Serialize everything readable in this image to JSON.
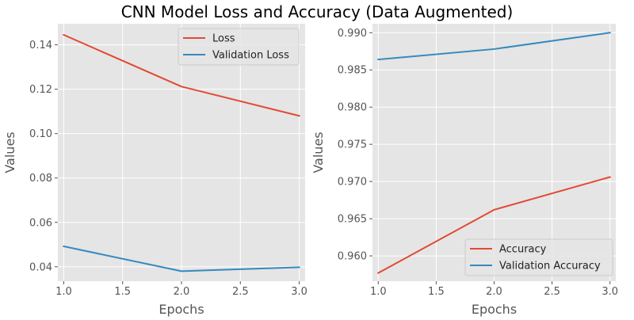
{
  "figure": {
    "title": "CNN Model Loss and Accuracy (Data Augmented)"
  },
  "chart_data": [
    {
      "type": "line",
      "title": "",
      "xlabel": "Epochs",
      "ylabel": "Values",
      "x": [
        1.0,
        2.0,
        3.0
      ],
      "xlim": [
        0.95,
        3.05
      ],
      "ylim": [
        0.0335,
        0.1495
      ],
      "xticks": [
        "1.0",
        "1.5",
        "2.0",
        "2.5",
        "3.0"
      ],
      "yticks": [
        "0.04",
        "0.06",
        "0.08",
        "0.10",
        "0.12",
        "0.14"
      ],
      "grid": true,
      "legend_position": "upper right",
      "series": [
        {
          "name": "Loss",
          "values": [
            0.1445,
            0.1212,
            0.108
          ],
          "color": "#e24a33"
        },
        {
          "name": "Validation Loss",
          "values": [
            0.0492,
            0.038,
            0.0398
          ],
          "color": "#348abd"
        }
      ]
    },
    {
      "type": "line",
      "title": "",
      "xlabel": "Epochs",
      "ylabel": "Values",
      "x": [
        1.0,
        2.0,
        3.0
      ],
      "xlim": [
        0.95,
        3.05
      ],
      "ylim": [
        0.9566,
        0.9912
      ],
      "xticks": [
        "1.0",
        "1.5",
        "2.0",
        "2.5",
        "3.0"
      ],
      "yticks": [
        "0.960",
        "0.965",
        "0.970",
        "0.975",
        "0.980",
        "0.985",
        "0.990"
      ],
      "grid": true,
      "legend_position": "lower right",
      "series": [
        {
          "name": "Accuracy",
          "values": [
            0.9577,
            0.9662,
            0.9706
          ],
          "color": "#e24a33"
        },
        {
          "name": "Validation Accuracy",
          "values": [
            0.9864,
            0.9878,
            0.99
          ],
          "color": "#348abd"
        }
      ]
    }
  ]
}
